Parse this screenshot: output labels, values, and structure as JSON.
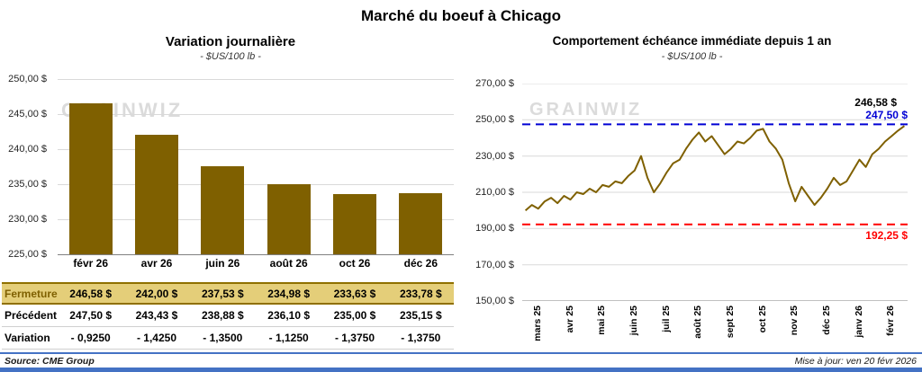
{
  "page": {
    "title": "Marché du boeuf à Chicago",
    "watermark": "GRAINWIZ",
    "footer": {
      "source": "Source: CME Group",
      "updated": "Mise à jour: ven 20 févr 2026"
    }
  },
  "colors": {
    "gold": "#7F6000",
    "gold_row_bg": "#E4CE79",
    "red": "#FF0000",
    "blue": "#0000D4",
    "footer_blue": "#4472C4",
    "grid": "#D9D9D9",
    "axis": "#808080"
  },
  "chart_data": [
    {
      "type": "bar",
      "title": "Variation journalière",
      "subtitle": "- $US/100 lb -",
      "categories": [
        "févr 26",
        "avr 26",
        "juin 26",
        "août 26",
        "oct 26",
        "déc 26"
      ],
      "values": [
        246.58,
        242.0,
        237.53,
        234.98,
        233.63,
        233.78
      ],
      "ylim": [
        225,
        250
      ],
      "ytick_step": 5,
      "ytick_labels": [
        "250,00 $",
        "245,00 $",
        "240,00 $",
        "235,00 $",
        "230,00 $",
        "225,00 $"
      ],
      "bar_color": "#7F6000",
      "grid": true,
      "legend": "none"
    },
    {
      "type": "line",
      "title": "Comportement échéance immédiate depuis 1 an",
      "subtitle": "- $US/100 lb -",
      "x_labels": [
        "mars 25",
        "avr 25",
        "mai 25",
        "juin 25",
        "juil 25",
        "août 25",
        "sept 25",
        "oct 25",
        "nov 25",
        "déc 25",
        "janv 26",
        "févr 26"
      ],
      "values": [
        200,
        203,
        201,
        205,
        207,
        204,
        208,
        206,
        210,
        209,
        212,
        210,
        214,
        213,
        216,
        215,
        219,
        222,
        230,
        218,
        210,
        215,
        221,
        226,
        228,
        234,
        239,
        243,
        238,
        241,
        236,
        231,
        234,
        238,
        237,
        240,
        244,
        245,
        238,
        234,
        228,
        215,
        205,
        213,
        208,
        203,
        207,
        212,
        218,
        214,
        216,
        222,
        228,
        224,
        231,
        234,
        238,
        241,
        244,
        246.58
      ],
      "ylim": [
        150,
        270
      ],
      "ytick_step": 20,
      "ytick_labels": [
        "270,00 $",
        "250,00 $",
        "230,00 $",
        "210,00 $",
        "190,00 $",
        "170,00 $",
        "150,00 $"
      ],
      "line_color": "#7F6000",
      "ref_lines": [
        {
          "value": 247.5,
          "label": "247,50 $",
          "color": "#0000D4",
          "style": "dashed"
        },
        {
          "value": 192.25,
          "label": "192,25 $",
          "color": "#FF0000",
          "style": "dashed"
        }
      ],
      "end_label": {
        "value": 246.58,
        "label": "246,58 $",
        "color": "#000000"
      },
      "grid": true,
      "legend": "none"
    }
  ],
  "table": {
    "rows": [
      {
        "label": "Fermeture",
        "values": [
          "246,58 $",
          "242,00 $",
          "237,53 $",
          "234,98 $",
          "233,63 $",
          "233,78 $"
        ]
      },
      {
        "label": "Précédent",
        "values": [
          "247,50 $",
          "243,43 $",
          "238,88 $",
          "236,10 $",
          "235,00 $",
          "235,15 $"
        ]
      },
      {
        "label": "Variation",
        "values": [
          "- 0,9250",
          "- 1,4250",
          "- 1,3500",
          "- 1,1250",
          "- 1,3750",
          "- 1,3750"
        ]
      }
    ]
  }
}
